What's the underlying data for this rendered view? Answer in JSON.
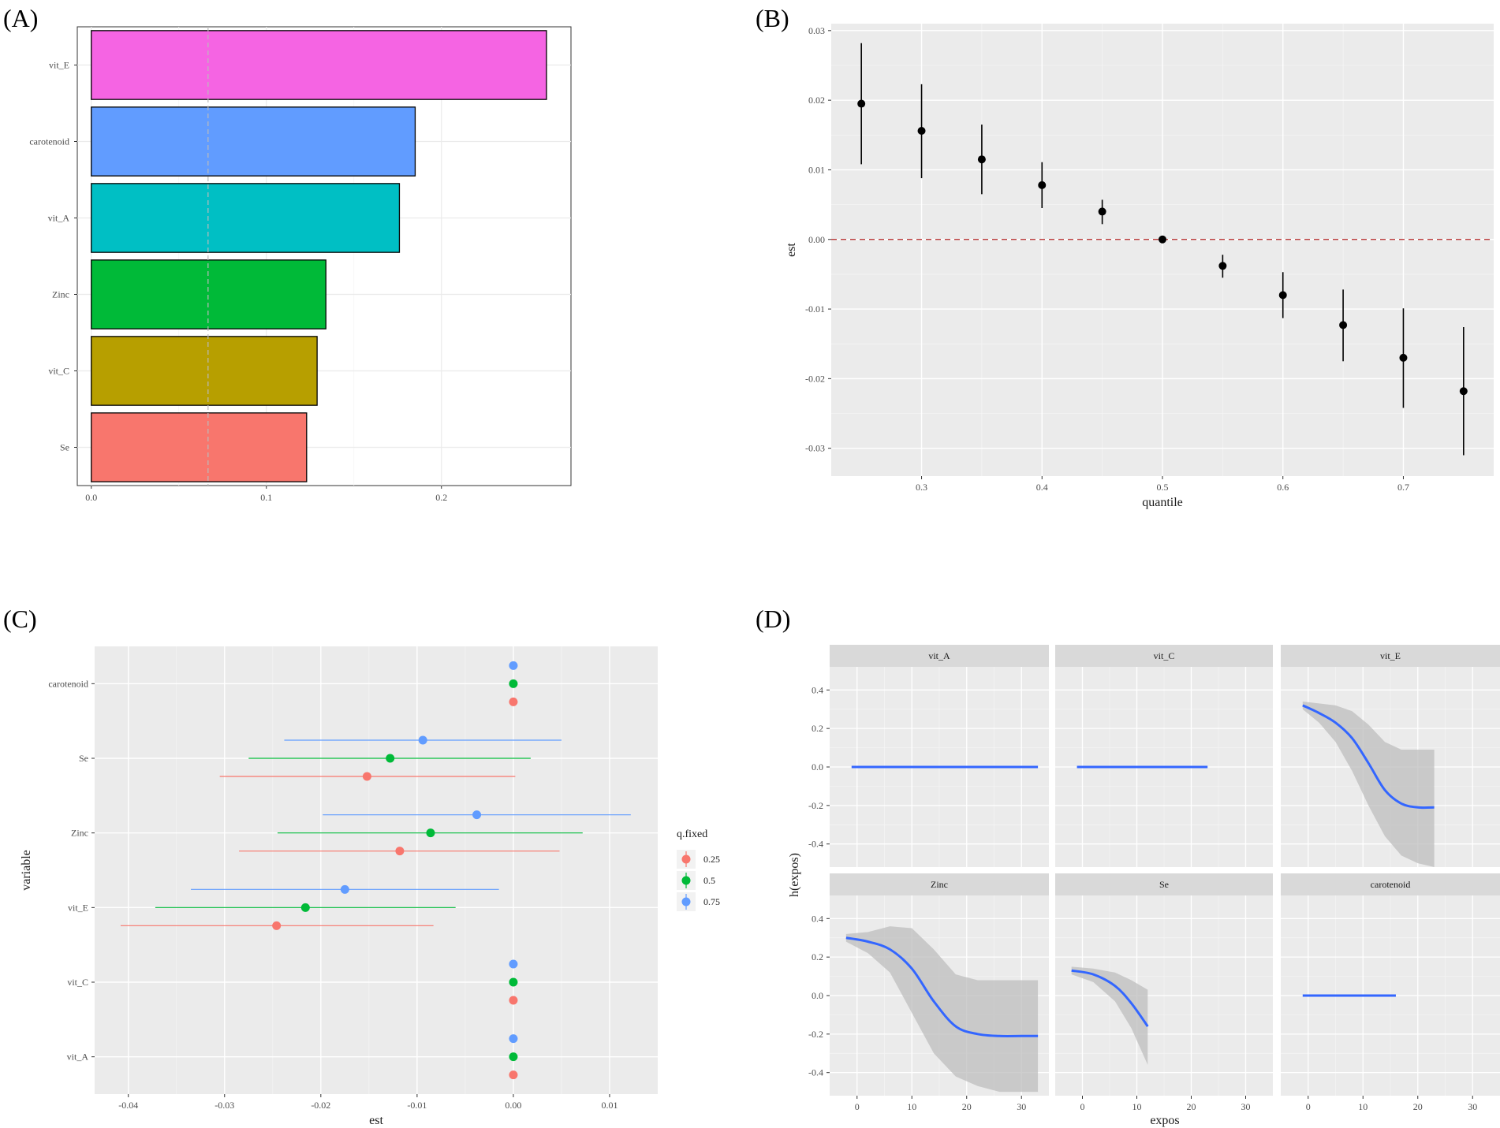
{
  "panel_labels": [
    "(A)",
    "(B)",
    "(C)",
    "(D)"
  ],
  "colors": {
    "panel_bg": "#EBEBEB",
    "grid_major": "#FFFFFF",
    "strip_bg": "#D9D9D9",
    "smooth_line": "#3366FF",
    "ribbon": "#BDBDBD",
    "ref_line_B": "#B22222",
    "ref_line_A": "#BBBBBB"
  },
  "chart_data": [
    {
      "panel": "A",
      "type": "bar",
      "orientation": "horizontal",
      "categories": [
        "vit_E",
        "carotenoid",
        "vit_A",
        "Zinc",
        "vit_C",
        "Se"
      ],
      "values": [
        0.26,
        0.185,
        0.176,
        0.134,
        0.129,
        0.123
      ],
      "colors": [
        "#F564E3",
        "#619CFF",
        "#00BFC4",
        "#00BA38",
        "#B79F00",
        "#F8766D"
      ],
      "xlim": [
        -0.008,
        0.274
      ],
      "xticks": [
        0.0,
        0.1,
        0.2
      ],
      "xtick_labels": [
        "0.0",
        "0.1",
        "0.2"
      ],
      "reference_line_x": 0.0667,
      "title": "",
      "xlabel": "",
      "ylabel": ""
    },
    {
      "panel": "B",
      "type": "scatter",
      "error_bars": true,
      "x": [
        0.25,
        0.3,
        0.35,
        0.4,
        0.45,
        0.5,
        0.55,
        0.6,
        0.65,
        0.7,
        0.75
      ],
      "y": [
        0.0195,
        0.0156,
        0.0115,
        0.0078,
        0.004,
        0.0,
        -0.0038,
        -0.008,
        -0.0123,
        -0.017,
        -0.0218
      ],
      "ymin": [
        0.0108,
        0.0088,
        0.0065,
        0.0045,
        0.0022,
        0.0,
        -0.0055,
        -0.0113,
        -0.0175,
        -0.0242,
        -0.031
      ],
      "ymax": [
        0.0282,
        0.0223,
        0.0165,
        0.0111,
        0.0057,
        0.0,
        -0.0022,
        -0.0047,
        -0.0072,
        -0.0099,
        -0.0126
      ],
      "xlim": [
        0.225,
        0.775
      ],
      "ylim": [
        -0.034,
        0.031
      ],
      "xticks": [
        0.3,
        0.4,
        0.5,
        0.6,
        0.7
      ],
      "xtick_labels": [
        "0.3",
        "0.4",
        "0.5",
        "0.6",
        "0.7"
      ],
      "yticks": [
        -0.03,
        -0.02,
        -0.01,
        0.0,
        0.01,
        0.02,
        0.03
      ],
      "ytick_labels": [
        "-0.03",
        "-0.02",
        "-0.01",
        "0.00",
        "0.01",
        "0.02",
        "0.03"
      ],
      "hline_y": 0,
      "xlabel": "quantile",
      "ylabel": "est"
    },
    {
      "panel": "C",
      "type": "scatter",
      "error_bars": "horizontal",
      "categories": [
        "carotenoid",
        "Se",
        "Zinc",
        "vit_E",
        "vit_C",
        "vit_A"
      ],
      "series": [
        {
          "name": "0.25",
          "color": "#F8766D",
          "values": [
            0.0,
            -0.0152,
            -0.0118,
            -0.0246,
            0.0,
            0.0
          ],
          "low": [
            0.0,
            -0.0305,
            -0.0285,
            -0.0408,
            0.0,
            0.0
          ],
          "high": [
            0.0,
            0.0002,
            0.0048,
            -0.0083,
            0.0,
            0.0
          ]
        },
        {
          "name": "0.5",
          "color": "#00BA38",
          "values": [
            0.0,
            -0.0128,
            -0.0086,
            -0.0216,
            0.0,
            0.0
          ],
          "low": [
            0.0,
            -0.0275,
            -0.0245,
            -0.0372,
            0.0,
            0.0
          ],
          "high": [
            0.0,
            0.0018,
            0.0072,
            -0.006,
            0.0,
            0.0
          ]
        },
        {
          "name": "0.75",
          "color": "#619CFF",
          "values": [
            0.0,
            -0.0094,
            -0.0038,
            -0.0175,
            0.0,
            0.0
          ],
          "low": [
            0.0,
            -0.0238,
            -0.0198,
            -0.0335,
            0.0,
            0.0
          ],
          "high": [
            0.0,
            0.005,
            0.0122,
            -0.0015,
            0.0,
            0.0
          ]
        }
      ],
      "xlim": [
        -0.0435,
        0.015
      ],
      "xticks": [
        -0.04,
        -0.03,
        -0.02,
        -0.01,
        0.0,
        0.01
      ],
      "xtick_labels": [
        "-0.04",
        "-0.03",
        "-0.02",
        "-0.01",
        "0.00",
        "0.01"
      ],
      "xlabel": "est",
      "ylabel": "variable",
      "legend_title": "q.fixed",
      "legend_position": "right"
    },
    {
      "panel": "D",
      "type": "line",
      "ribbon": true,
      "xlim": [
        -5,
        35
      ],
      "ylim": [
        -0.52,
        0.52
      ],
      "xticks": [
        0,
        10,
        20,
        30
      ],
      "xtick_labels": [
        "0",
        "10",
        "20",
        "30"
      ],
      "yticks": [
        -0.4,
        -0.2,
        0.0,
        0.2,
        0.4
      ],
      "ytick_labels": [
        "-0.4",
        "-0.2",
        "0.0",
        "0.2",
        "0.4"
      ],
      "xlabel": "expos",
      "ylabel": "h(expos)",
      "facets": [
        {
          "name": "vit_A",
          "x": [
            -1,
            33
          ],
          "y": [
            0,
            0
          ],
          "low": [
            0,
            0
          ],
          "high": [
            0,
            0
          ]
        },
        {
          "name": "vit_C",
          "x": [
            -1,
            23
          ],
          "y": [
            0,
            0
          ],
          "low": [
            0,
            0
          ],
          "high": [
            0,
            0
          ]
        },
        {
          "name": "vit_E",
          "x": [
            -1,
            2,
            5,
            8,
            11,
            14,
            17,
            20,
            23
          ],
          "y": [
            0.32,
            0.28,
            0.23,
            0.15,
            0.02,
            -0.12,
            -0.19,
            -0.21,
            -0.21
          ],
          "low": [
            0.3,
            0.23,
            0.13,
            -0.02,
            -0.2,
            -0.36,
            -0.46,
            -0.5,
            -0.52
          ],
          "high": [
            0.34,
            0.33,
            0.32,
            0.29,
            0.22,
            0.13,
            0.09,
            0.09,
            0.09
          ]
        },
        {
          "name": "Zinc",
          "x": [
            -2,
            2,
            6,
            10,
            14,
            18,
            22,
            26,
            30,
            33
          ],
          "y": [
            0.3,
            0.28,
            0.24,
            0.14,
            -0.03,
            -0.16,
            -0.2,
            -0.21,
            -0.21,
            -0.21
          ],
          "low": [
            0.28,
            0.22,
            0.12,
            -0.09,
            -0.3,
            -0.42,
            -0.47,
            -0.5,
            -0.5,
            -0.5
          ],
          "high": [
            0.32,
            0.33,
            0.36,
            0.35,
            0.24,
            0.11,
            0.08,
            0.08,
            0.08,
            0.08
          ]
        },
        {
          "name": "Se",
          "x": [
            -2,
            2,
            6,
            9,
            12
          ],
          "y": [
            0.13,
            0.11,
            0.05,
            -0.04,
            -0.16
          ],
          "low": [
            0.11,
            0.07,
            -0.03,
            -0.17,
            -0.36
          ],
          "high": [
            0.15,
            0.14,
            0.12,
            0.08,
            0.03
          ]
        },
        {
          "name": "carotenoid",
          "x": [
            -1,
            16
          ],
          "y": [
            0,
            0
          ],
          "low": [
            0,
            0
          ],
          "high": [
            0,
            0
          ]
        }
      ]
    }
  ]
}
